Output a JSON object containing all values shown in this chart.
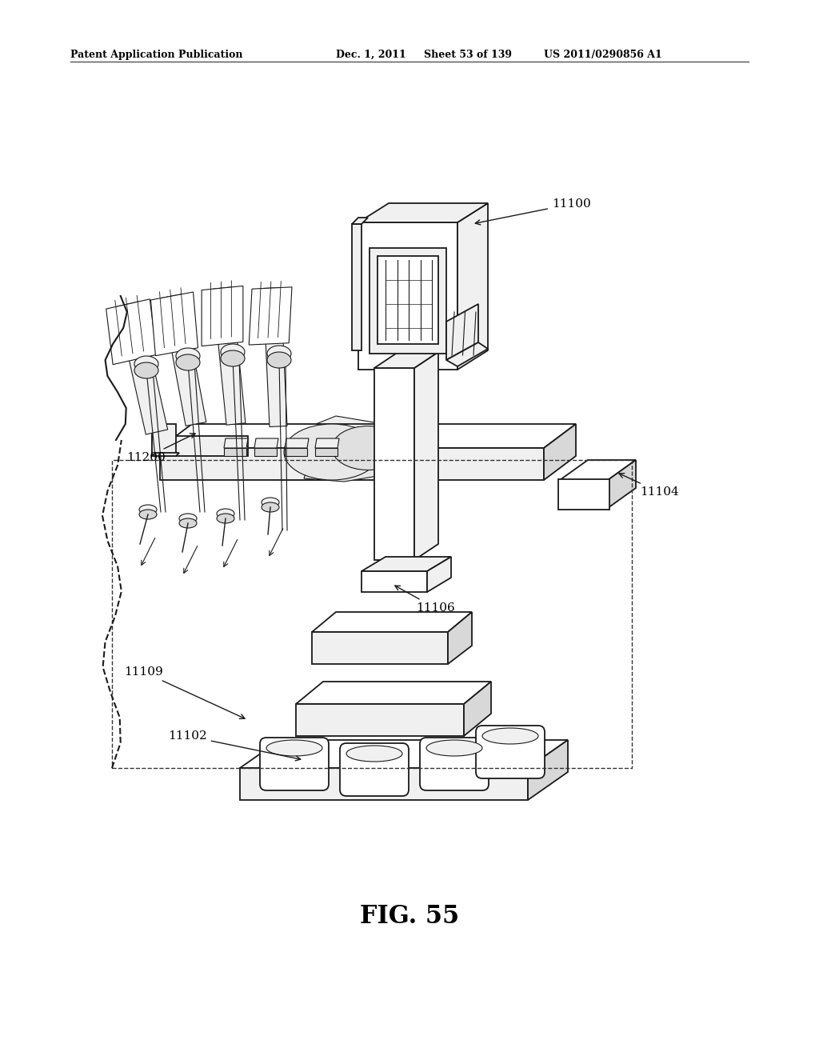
{
  "page_background": "#ffffff",
  "header_left": "Patent Application Publication",
  "header_center": "Dec. 1, 2011   Sheet 53 of 139",
  "header_right": "US 2011/0290856 A1",
  "figure_label": "FIG. 55",
  "outline_color": "#1a1a1a",
  "fill_white": "#ffffff",
  "fill_light": "#f0f0f0",
  "fill_mid": "#d8d8d8",
  "fill_dark": "#b0b0b0"
}
